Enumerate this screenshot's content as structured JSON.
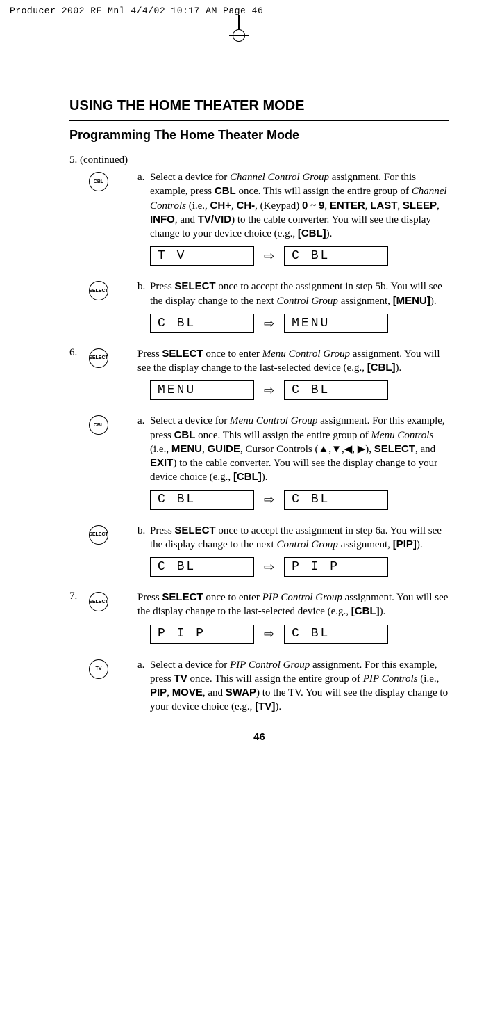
{
  "print_header": "Producer 2002 RF Mnl  4/4/02  10:17 AM  Page 46",
  "section_title": "USING THE HOME THEATER MODE",
  "subsection_title": "Programming The Home Theater Mode",
  "continued": "5. (continued)",
  "icons": {
    "cbl": "CBL",
    "select": "SELECT",
    "tv": "TV"
  },
  "step5a": {
    "letter": "a.",
    "t1": "Select a device for ",
    "i1": "Channel Control Group",
    "t2": " assignment. For this example, press ",
    "b1": "CBL",
    "t3": " once. This will assign the entire group of ",
    "i2": "Channel Controls",
    "t4": " (i.e., ",
    "b2": "CH+",
    "t5": ",  ",
    "b3": "CH-",
    "t6": ", (Keypad) ",
    "b4": "0",
    "t7": " ~ ",
    "b5": "9",
    "t8": ", ",
    "b6": "ENTER",
    "t9": ", ",
    "b7": "LAST",
    "t10": ", ",
    "b8": "SLEEP",
    "t11": ", ",
    "b9": "INFO",
    "t12": ", and ",
    "b10": "TV/VID",
    "t13": ") to the cable converter. You will see the display change to your device choice (e.g., ",
    "b11": "[CBL]",
    "t14": ").",
    "lcd_from": "T V",
    "lcd_to": "C BL"
  },
  "step5b": {
    "letter": "b.",
    "t1": "Press ",
    "b1": "SELECT",
    "t2": " once to accept the assignment in step 5b. You will see the display change to the next ",
    "i1": "Control Group",
    "t3": " assignment, ",
    "b2": "[MENU]",
    "t4": ").",
    "lcd_from": "C BL",
    "lcd_to": "MENU"
  },
  "step6": {
    "num": "6.",
    "t1": "Press ",
    "b1": "SELECT",
    "t2": " once to enter ",
    "i1": "Menu Control Group",
    "t3": " assignment. You will see the display change to the last-selected device (e.g., ",
    "b2": "[CBL]",
    "t4": ").",
    "lcd_from": "MENU",
    "lcd_to": "C BL"
  },
  "step6a": {
    "letter": "a.",
    "t1": "Select a device for ",
    "i1": "Menu Control Group",
    "t2": " assignment. For this example, press ",
    "b1": "CBL",
    "t3": " once. This will assign the entire group of ",
    "i2": "Menu Controls",
    "t4": " (i.e., ",
    "b2": "MENU",
    "t5": ", ",
    "b3": "GUIDE",
    "t6": ", Cursor Controls (▲,▼,◀, ▶), ",
    "b4": "SELECT",
    "t7": ", and ",
    "b5": "EXIT",
    "t8": ") to the cable converter. You will see the display change to your device choice (e.g., ",
    "b6": "[CBL]",
    "t9": ").",
    "lcd_from": "C BL",
    "lcd_to": "C BL"
  },
  "step6b": {
    "letter": "b.",
    "t1": "Press ",
    "b1": "SELECT",
    "t2": " once to accept the assignment in step 6a. You will see the display change to the next ",
    "i1": "Control Group",
    "t3": " assignment, ",
    "b2": "[PIP]",
    "t4": ").",
    "lcd_from": "C BL",
    "lcd_to": "P I P"
  },
  "step7": {
    "num": "7.",
    "t1": "Press ",
    "b1": "SELECT",
    "t2": " once to enter ",
    "i1": "PIP Control Group",
    "t3": " assignment. You will see the display change to the last-selected device (e.g., ",
    "b2": "[CBL]",
    "t4": ").",
    "lcd_from": "P I P",
    "lcd_to": "C BL"
  },
  "step7a": {
    "letter": "a.",
    "t1": "Select a device for ",
    "i1": "PIP Control Group",
    "t2": " assignment. For this example, press ",
    "b1": "TV",
    "t3": " once. This will assign the entire group of ",
    "i2": "PIP Controls",
    "t4": " (i.e., ",
    "b2": "PIP",
    "t5": ", ",
    "b3": "MOVE",
    "t6": ", and ",
    "b4": "SWAP",
    "t7": ") to the TV. You will see the display change to your device choice (e.g., ",
    "b5": "[TV]",
    "t8": ")."
  },
  "page_num": "46"
}
